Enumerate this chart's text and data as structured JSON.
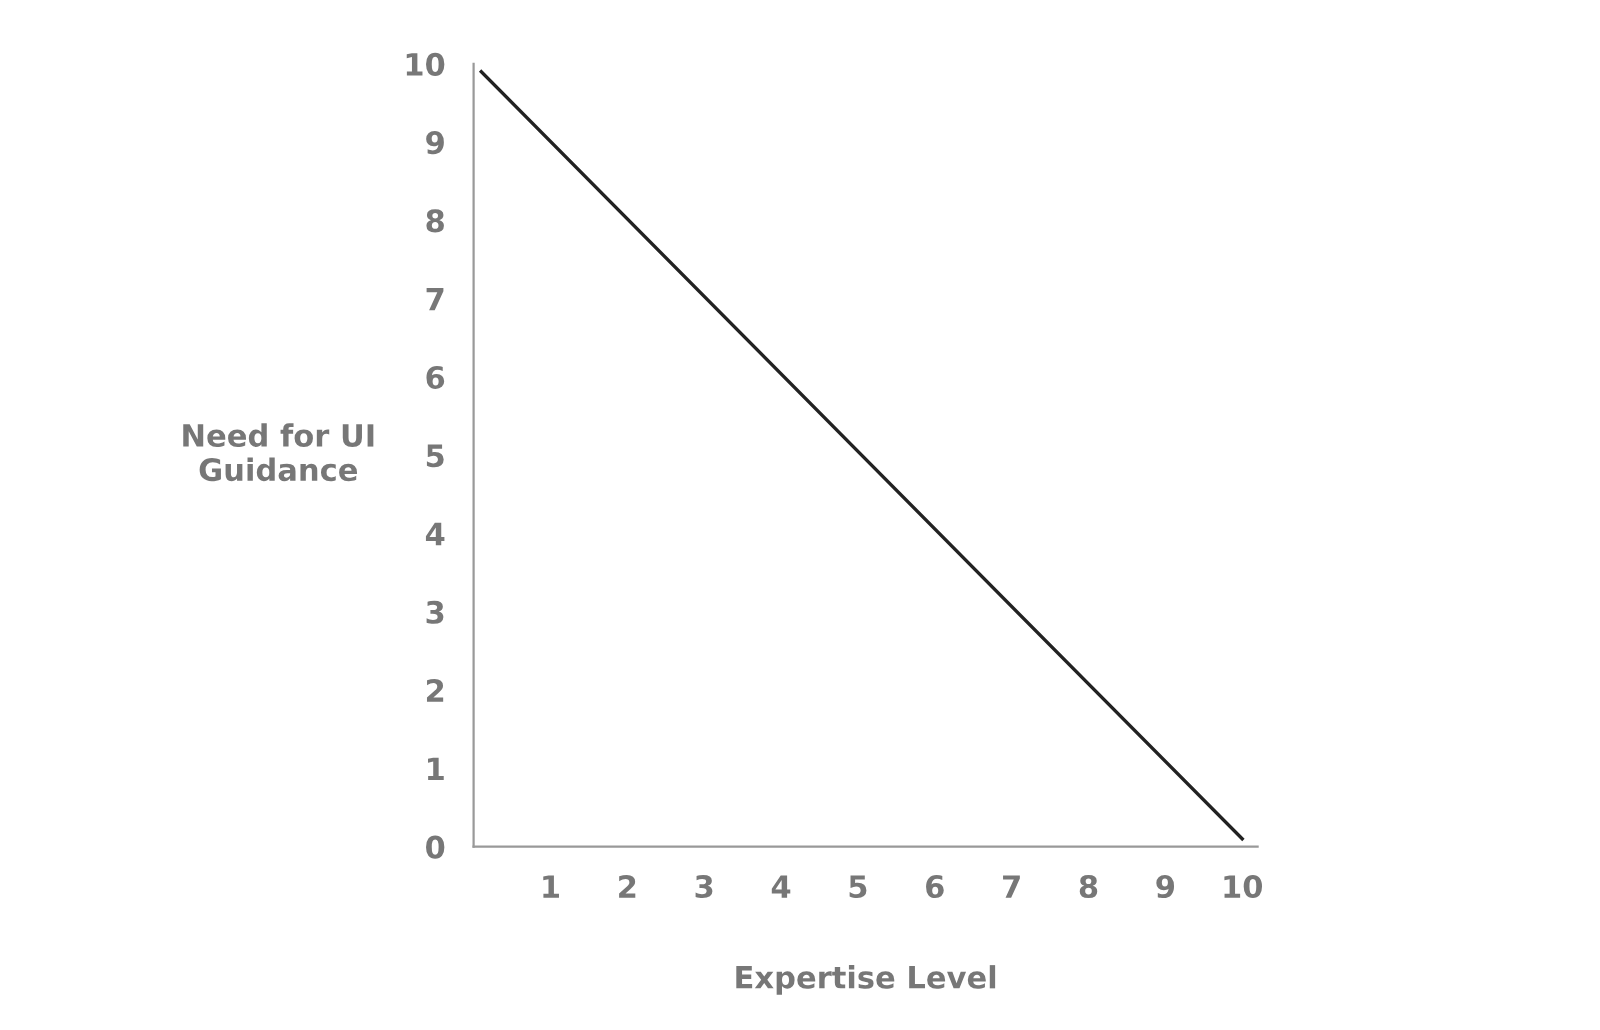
{
  "chart_data": {
    "type": "line",
    "xlabel": "Expertise Level",
    "ylabel": "Need for UI\nGuidance",
    "x": [
      0.1,
      10
    ],
    "series": [
      {
        "color": "#222222",
        "values": [
          9.9,
          0.1
        ]
      }
    ],
    "xlim": [
      0,
      10.2
    ],
    "ylim": [
      0,
      10
    ],
    "xticks": [
      1,
      2,
      3,
      4,
      5,
      6,
      7,
      8,
      9,
      10
    ],
    "yticks": [
      0,
      1,
      2,
      3,
      4,
      5,
      6,
      7,
      8,
      9,
      10
    ],
    "grid": false,
    "legend": false,
    "marker": "none",
    "line_style": "solid"
  }
}
